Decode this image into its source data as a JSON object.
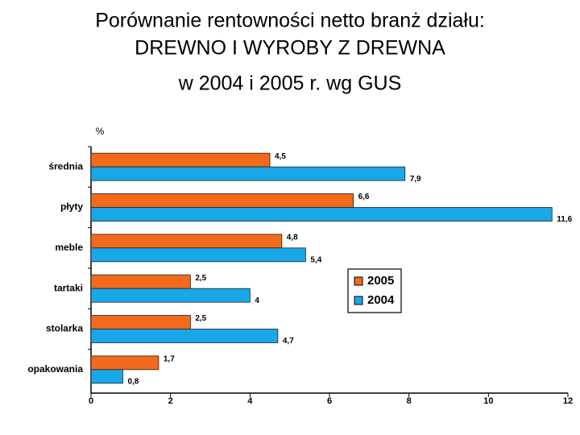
{
  "chart_data": {
    "type": "hbar",
    "title": [
      "Porównanie rentowności netto branż działu:",
      "DREWNO I WYROBY Z DREWNA"
    ],
    "subtitle": "w 2004 i 2005 r. wg GUS",
    "y_label": "%",
    "categories": [
      "średnia",
      "płyty",
      "meble",
      "tartaki",
      "stolarka",
      "opakowania"
    ],
    "series": [
      {
        "name": "2005",
        "color": "#f26a1b",
        "values": [
          4.5,
          6.6,
          4.8,
          2.5,
          2.5,
          1.7
        ],
        "value_labels": [
          "4,5",
          "6,6",
          "4,8",
          "2,5",
          "2,5",
          "1,7"
        ]
      },
      {
        "name": "2004",
        "color": "#1aa7e8",
        "values": [
          7.9,
          11.6,
          5.4,
          4,
          4.7,
          0.8
        ],
        "value_labels": [
          "7,9",
          "11,6",
          "5,4",
          "4",
          "4,7",
          "0,8"
        ]
      }
    ],
    "xlim": [
      0,
      12
    ],
    "xticks": [
      0,
      2,
      4,
      6,
      8,
      10,
      12
    ],
    "legend": "center-right"
  }
}
